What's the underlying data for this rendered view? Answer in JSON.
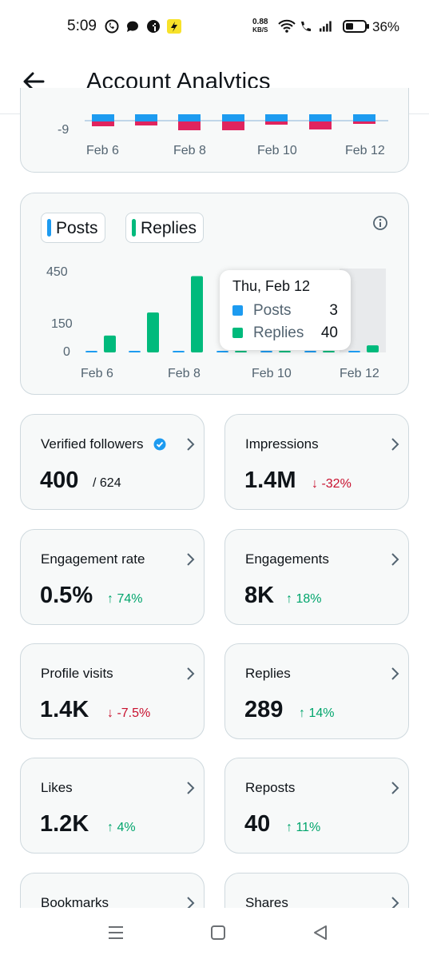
{
  "status_bar": {
    "time": "5:09",
    "net_speed_value": "0.88",
    "net_speed_unit": "KB/S",
    "battery": "36%"
  },
  "header": {
    "title": "Account Analytics"
  },
  "top_chart": {
    "y_tick": "-9",
    "x_ticks": [
      "Feb 6",
      "Feb 8",
      "Feb 10",
      "Feb 12"
    ]
  },
  "chart_data": {
    "type": "bar",
    "categories": [
      "Feb 6",
      "Feb 7",
      "Feb 8",
      "Feb 9",
      "Feb 10",
      "Feb 11",
      "Feb 12"
    ],
    "series": [
      {
        "name": "Posts",
        "color": "#1d9bf0",
        "values": [
          3,
          8,
          9,
          8,
          3,
          3,
          3
        ]
      },
      {
        "name": "Replies",
        "color": "#00ba7c",
        "values": [
          95,
          225,
          430,
          5,
          5,
          5,
          40
        ]
      }
    ],
    "y_ticks": [
      "450",
      "150",
      "0"
    ],
    "x_ticks": [
      "Feb 6",
      "Feb 8",
      "Feb 10",
      "Feb 12"
    ],
    "ylim": [
      0,
      450
    ],
    "highlighted_category": "Feb 12",
    "legend": "top-left",
    "grid": false
  },
  "tooltip": {
    "date": "Thu, Feb 12",
    "rows": [
      {
        "label": "Posts",
        "value": "3",
        "color": "#1d9bf0"
      },
      {
        "label": "Replies",
        "value": "40",
        "color": "#00ba7c"
      }
    ]
  },
  "metrics": [
    {
      "title": "Verified followers",
      "value": "400",
      "suffix": "/ 624",
      "delta": "",
      "verified": true
    },
    {
      "title": "Impressions",
      "value": "1.4M",
      "suffix": "",
      "delta": "↓ -32%",
      "dir": "down"
    },
    {
      "title": "Engagement rate",
      "value": "0.5%",
      "suffix": "",
      "delta": "↑ 74%",
      "dir": "up"
    },
    {
      "title": "Engagements",
      "value": "8K",
      "suffix": "",
      "delta": "↑ 18%",
      "dir": "up"
    },
    {
      "title": "Profile visits",
      "value": "1.4K",
      "suffix": "",
      "delta": "↓ -7.5%",
      "dir": "down"
    },
    {
      "title": "Replies",
      "value": "289",
      "suffix": "",
      "delta": "↑ 14%",
      "dir": "up"
    },
    {
      "title": "Likes",
      "value": "1.2K",
      "suffix": "",
      "delta": "↑ 4%",
      "dir": "up"
    },
    {
      "title": "Reposts",
      "value": "40",
      "suffix": "",
      "delta": "↑ 11%",
      "dir": "up"
    },
    {
      "title": "Bookmarks",
      "value": "",
      "suffix": "",
      "delta": ""
    },
    {
      "title": "Shares",
      "value": "",
      "suffix": "",
      "delta": ""
    }
  ],
  "colors": {
    "posts": "#1d9bf0",
    "replies": "#00ba7c",
    "negative": "#e0245e",
    "up": "#00a56c",
    "down": "#c8102e"
  }
}
